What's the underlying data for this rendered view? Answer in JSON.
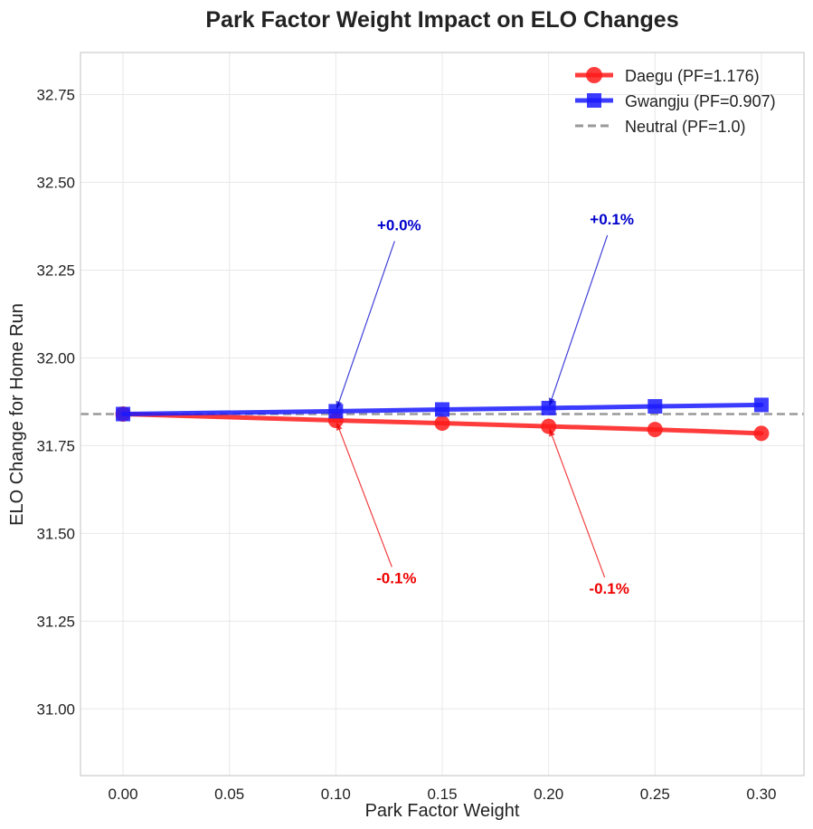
{
  "chart_data": {
    "type": "line",
    "title": "Park Factor Weight Impact on ELO Changes",
    "xlabel": "Park Factor Weight",
    "ylabel": "ELO Change for Home Run",
    "xlim": [
      -0.02,
      0.32
    ],
    "ylim": [
      30.81,
      32.87
    ],
    "x_ticks": [
      0.0,
      0.05,
      0.1,
      0.15,
      0.2,
      0.25,
      0.3
    ],
    "x_tick_labels": [
      "0.00",
      "0.05",
      "0.10",
      "0.15",
      "0.20",
      "0.25",
      "0.30"
    ],
    "y_ticks": [
      31.0,
      31.25,
      31.5,
      31.75,
      32.0,
      32.25,
      32.5,
      32.75
    ],
    "y_tick_labels": [
      "31.00",
      "31.25",
      "31.50",
      "31.75",
      "32.00",
      "32.25",
      "32.50",
      "32.75"
    ],
    "grid": true,
    "legend_position": "top-right",
    "x": [
      0.0,
      0.1,
      0.15,
      0.2,
      0.25,
      0.3
    ],
    "series": [
      {
        "name": "Daegu (PF=1.176)",
        "color": "#ff1a1a",
        "marker": "circle",
        "values": [
          31.84,
          31.822,
          31.814,
          31.805,
          31.796,
          31.785
        ]
      },
      {
        "name": "Gwangju (PF=0.907)",
        "color": "#1a1aff",
        "marker": "square",
        "values": [
          31.84,
          31.848,
          31.853,
          31.857,
          31.862,
          31.866
        ]
      }
    ],
    "reference_line": {
      "name": "Neutral (PF=1.0)",
      "y": 31.84,
      "color": "#999999",
      "style": "dashed"
    },
    "annotations": [
      {
        "text": "+0.0%",
        "x": 0.1,
        "y": 31.848,
        "color": "#0000cc"
      },
      {
        "text": "+0.1%",
        "x": 0.2,
        "y": 31.857,
        "color": "#0000cc"
      },
      {
        "text": "-0.1%",
        "x": 0.1,
        "y": 31.822,
        "color": "#ee0000"
      },
      {
        "text": "-0.1%",
        "x": 0.2,
        "y": 31.805,
        "color": "#ee0000"
      }
    ]
  }
}
